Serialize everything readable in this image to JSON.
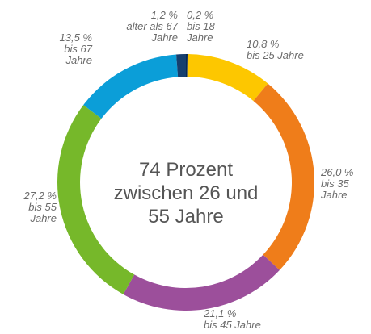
{
  "chart_data": {
    "type": "donut",
    "center_text": "74 Prozent zwischen 26 und 55 Jahre",
    "categories": [
      "bis 18 Jahre",
      "bis 25 Jahre",
      "bis 35 Jahre",
      "bis 45 Jahre",
      "bis 55 Jahre",
      "bis 67 Jahre",
      "älter als 67 Jahre"
    ],
    "values": [
      0.2,
      10.8,
      26.0,
      21.1,
      27.2,
      13.5,
      1.2
    ],
    "value_labels": [
      "0,2 %",
      "10,8 %",
      "26,0 %",
      "21,1 %",
      "27,2 %",
      "13,5 %",
      "1,2 %"
    ],
    "colors": [
      "#0a2a55",
      "#fdc700",
      "#ef7d1a",
      "#9c4f9b",
      "#76b82a",
      "#0b9ed8",
      "#163f6e"
    ]
  }
}
